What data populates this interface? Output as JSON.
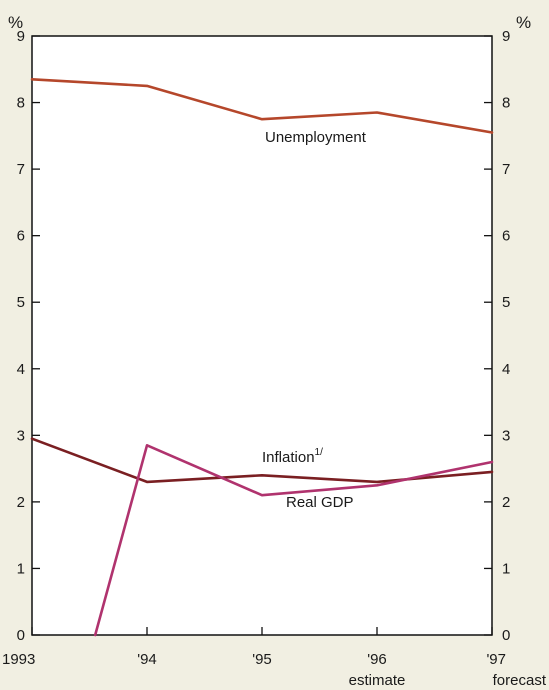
{
  "chart_data": {
    "type": "line",
    "unit_left": "%",
    "unit_right": "%",
    "x": [
      1993,
      1994,
      1995,
      1996,
      1997
    ],
    "xticks": [
      "1993",
      "'94",
      "'95",
      "'96",
      "'97"
    ],
    "xtick_notes": [
      "",
      "",
      "",
      "estimate",
      "forecast"
    ],
    "ylim": [
      0,
      9
    ],
    "yticks": [
      0,
      1,
      2,
      3,
      4,
      5,
      6,
      7,
      8,
      9
    ],
    "grid": false,
    "series": [
      {
        "name": "Unemployment",
        "color": "#b5472b",
        "values": [
          8.35,
          8.25,
          7.75,
          7.85,
          7.55
        ]
      },
      {
        "name": "Inflation",
        "name_sup": "1/",
        "color": "#7a1f22",
        "values": [
          2.95,
          2.3,
          2.4,
          2.3,
          2.45
        ]
      },
      {
        "name": "Real GDP",
        "color": "#b0336e",
        "values": [
          0.0,
          2.85,
          2.1,
          2.25,
          2.6
        ],
        "start_x": 1993.55
      }
    ]
  }
}
